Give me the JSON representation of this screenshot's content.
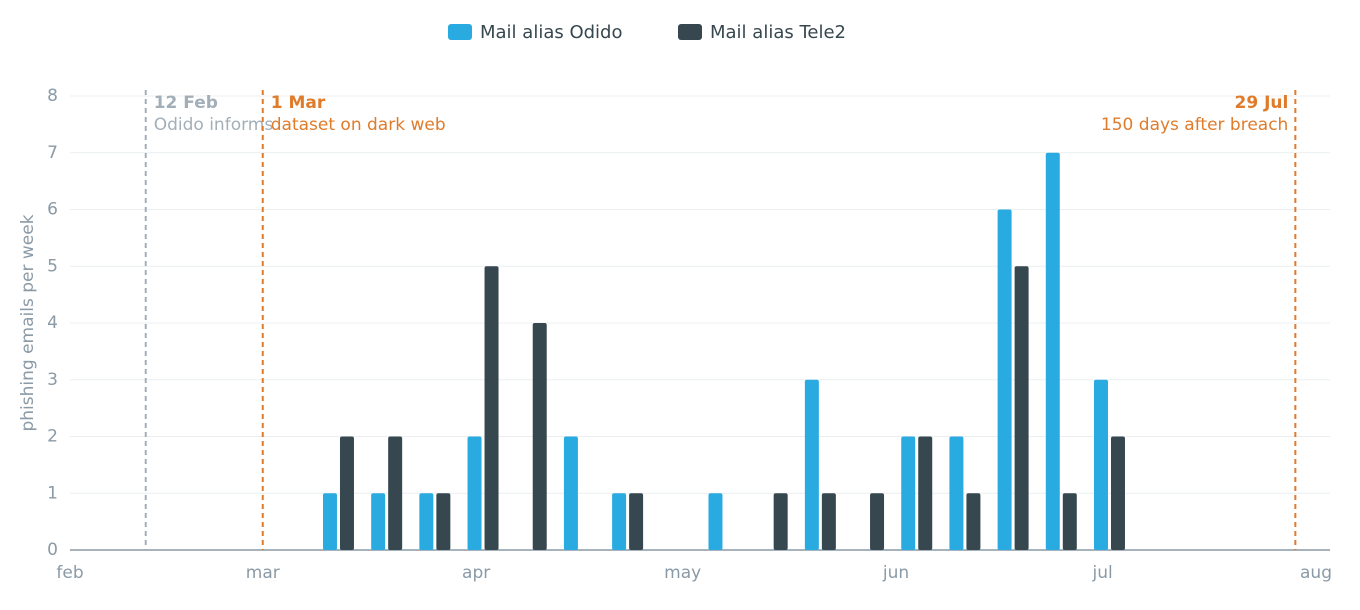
{
  "chart_data": {
    "type": "bar",
    "y_label": "phishing emails per week",
    "x": [
      71,
      78,
      85,
      92,
      99,
      106,
      113,
      120,
      127,
      134,
      141,
      148,
      155,
      162,
      169,
      176,
      183
    ],
    "series": [
      {
        "name": "Mail alias Odido",
        "color": "#29abe2",
        "values": [
          1,
          1,
          1,
          2,
          0,
          2,
          1,
          0,
          1,
          0,
          3,
          0,
          2,
          2,
          6,
          7,
          3
        ]
      },
      {
        "name": "Mail alias Tele2",
        "color": "#37474f",
        "values": [
          2,
          2,
          1,
          5,
          4,
          0,
          1,
          0,
          0,
          1,
          1,
          1,
          2,
          1,
          5,
          1,
          2
        ]
      }
    ],
    "xlim": [
      32,
      213
    ],
    "xticks": [
      {
        "value": 32,
        "label": "feb"
      },
      {
        "value": 60,
        "label": "mar"
      },
      {
        "value": 91,
        "label": "apr"
      },
      {
        "value": 121,
        "label": "may"
      },
      {
        "value": 152,
        "label": "jun"
      },
      {
        "value": 182,
        "label": "jul"
      },
      {
        "value": 213,
        "label": "aug"
      }
    ],
    "ylim": [
      0,
      8
    ],
    "yticks": [
      0,
      1,
      2,
      3,
      4,
      5,
      6,
      7,
      8
    ],
    "grid": true,
    "legend": "top",
    "annotations": [
      {
        "x": 43,
        "label": "12 Feb",
        "text": "Odido informs",
        "color": "#a3afb8"
      },
      {
        "x": 60,
        "label": "1 Mar",
        "text": "dataset on dark web",
        "color": "#e07b2a"
      },
      {
        "x": 210,
        "label": "29 Jul",
        "text": "150 days after breach",
        "color": "#e07b2a"
      }
    ]
  }
}
